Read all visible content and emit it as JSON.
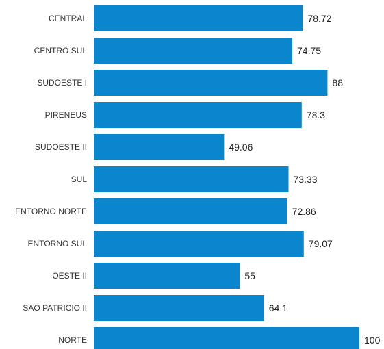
{
  "chart_data": {
    "type": "bar",
    "orientation": "horizontal",
    "categories": [
      "CENTRAL",
      "CENTRO SUL",
      "SUDOESTE I",
      "PIRENEUS",
      "SUDOESTE II",
      "SUL",
      "ENTORNO NORTE",
      "ENTORNO SUL",
      "OESTE II",
      "SAO PATRICIO II",
      "NORTE"
    ],
    "values": [
      78.72,
      74.75,
      88,
      78.3,
      49.06,
      73.33,
      72.86,
      79.07,
      55,
      64.1,
      100
    ],
    "value_labels": [
      "78.72",
      "74.75",
      "88",
      "78.3",
      "49.06",
      "73.33",
      "72.86",
      "79.07",
      "55",
      "64.1",
      "100"
    ],
    "xlim": [
      0,
      100
    ],
    "grid": false,
    "legend": "none",
    "colors": {
      "bar": "#0a86cf"
    }
  }
}
